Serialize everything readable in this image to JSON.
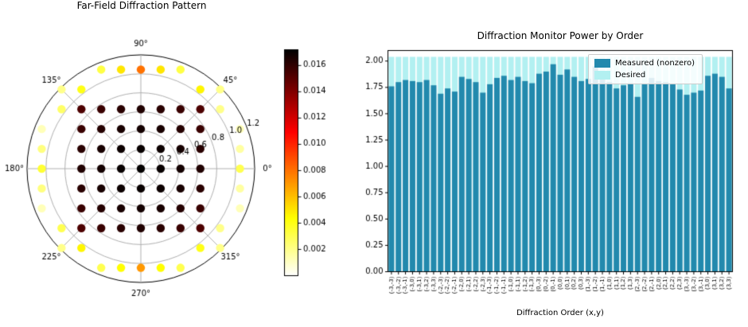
{
  "chart_data": [
    {
      "id": "far_field_polar",
      "type": "scatter",
      "projection": "polar",
      "title": "Far-Field Diffraction Pattern",
      "angle_tick_labels": [
        "0°",
        "45°",
        "90°",
        "135°",
        "180°",
        "225°",
        "270°",
        "315°"
      ],
      "angle_ticks_deg": [
        0,
        45,
        90,
        135,
        180,
        225,
        270,
        315
      ],
      "r_tick_labels": [
        "0.2",
        "0.4",
        "0.6",
        "0.8",
        "1.0",
        "1.2"
      ],
      "r_ticks": [
        0.2,
        0.4,
        0.6,
        0.8,
        1.0,
        1.2
      ],
      "r_max": 1.2,
      "r_label_angle_deg": 22.5,
      "colormap": "hot_r",
      "vmin": 0.0,
      "vmax": 0.0172,
      "colorbar_ticks": [
        0.002,
        0.004,
        0.006,
        0.008,
        0.01,
        0.012,
        0.014,
        0.016
      ],
      "order_spacing": 0.209,
      "inner_grid": {
        "m_range": [
          -3,
          3
        ],
        "n_range": [
          -3,
          3
        ],
        "values_rows": [
          [
            0.0153,
            0.0158,
            0.0162,
            0.0164,
            0.0162,
            0.0158,
            0.0153
          ],
          [
            0.0158,
            0.0163,
            0.0166,
            0.0167,
            0.0166,
            0.0163,
            0.0158
          ],
          [
            0.0162,
            0.0166,
            0.0169,
            0.017,
            0.0169,
            0.0166,
            0.0162
          ],
          [
            0.0164,
            0.0167,
            0.017,
            0.0171,
            0.017,
            0.0167,
            0.0164
          ],
          [
            0.0162,
            0.0166,
            0.0169,
            0.017,
            0.0169,
            0.0166,
            0.0162
          ],
          [
            0.0158,
            0.0163,
            0.0166,
            0.0167,
            0.0166,
            0.0163,
            0.0158
          ],
          [
            0.0153,
            0.0158,
            0.0162,
            0.0164,
            0.0162,
            0.0158,
            0.0153
          ]
        ]
      },
      "outer_points": [
        [
          5,
          0,
          0.003
        ],
        [
          -5,
          0,
          0.0035
        ],
        [
          0,
          5,
          0.008
        ],
        [
          0,
          -5,
          0.007
        ],
        [
          4,
          3,
          0.002
        ],
        [
          3,
          4,
          0.0046
        ],
        [
          -3,
          4,
          0.004
        ],
        [
          -4,
          3,
          0.0026
        ],
        [
          -4,
          -3,
          0.003
        ],
        [
          -3,
          -4,
          0.0046
        ],
        [
          3,
          -4,
          0.004
        ],
        [
          4,
          -3,
          0.002
        ],
        [
          5,
          1,
          0.0016
        ],
        [
          5,
          -1,
          0.0016
        ],
        [
          -5,
          1,
          0.0022
        ],
        [
          -5,
          -1,
          0.0022
        ],
        [
          1,
          5,
          0.005
        ],
        [
          -1,
          5,
          0.005
        ],
        [
          1,
          -5,
          0.0044
        ],
        [
          -1,
          -5,
          0.0044
        ],
        [
          5,
          2,
          0.0012
        ],
        [
          -5,
          2,
          0.0012
        ],
        [
          5,
          -2,
          0.0012
        ],
        [
          -5,
          -2,
          0.0012
        ],
        [
          2,
          5,
          0.0032
        ],
        [
          -2,
          5,
          0.0032
        ],
        [
          2,
          -5,
          0.003
        ],
        [
          -2,
          -5,
          0.003
        ],
        [
          4,
          4,
          0.002
        ],
        [
          -4,
          4,
          0.002
        ],
        [
          4,
          -4,
          0.002
        ],
        [
          -4,
          -4,
          0.002
        ]
      ]
    },
    {
      "id": "power_by_order",
      "type": "bar",
      "title": "Diffraction Monitor Power by Order",
      "xlabel": "Diffraction Order (x,y)",
      "ylim": [
        0,
        2.1
      ],
      "y_ticks": [
        0,
        0.25,
        0.5,
        0.75,
        1.0,
        1.25,
        1.5,
        1.75,
        2.0
      ],
      "grid": false,
      "legend_position": "upper right",
      "categories": [
        "(-3,-3)",
        "(-3,-2)",
        "(-3,-1)",
        "(-3,0)",
        "(-3,1)",
        "(-3,2)",
        "(-3,3)",
        "(-2,-3)",
        "(-2,-2)",
        "(-2,-1)",
        "(-2,0)",
        "(-2,1)",
        "(-2,2)",
        "(-2,3)",
        "(-1,-3)",
        "(-1,-2)",
        "(-1,-1)",
        "(-1,0)",
        "(-1,1)",
        "(-1,2)",
        "(-1,3)",
        "(0,-3)",
        "(0,-2)",
        "(0,-1)",
        "(0,0)",
        "(0,1)",
        "(0,2)",
        "(0,3)",
        "(1,-3)",
        "(1,-2)",
        "(1,-1)",
        "(1,0)",
        "(1,1)",
        "(1,2)",
        "(1,3)",
        "(2,-3)",
        "(2,-2)",
        "(2,-1)",
        "(2,0)",
        "(2,1)",
        "(2,2)",
        "(2,3)",
        "(3,-3)",
        "(3,-2)",
        "(3,-1)",
        "(3,0)",
        "(3,1)",
        "(3,2)",
        "(3,3)"
      ],
      "series": [
        {
          "name": "Measured (nonzero)",
          "color": "#2289ad",
          "values": [
            1.76,
            1.8,
            1.82,
            1.81,
            1.8,
            1.82,
            1.77,
            1.69,
            1.74,
            1.71,
            1.85,
            1.83,
            1.8,
            1.7,
            1.78,
            1.84,
            1.86,
            1.82,
            1.85,
            1.81,
            1.79,
            1.88,
            1.9,
            1.97,
            1.87,
            1.92,
            1.85,
            1.81,
            1.83,
            1.95,
            1.86,
            1.8,
            1.74,
            1.77,
            1.79,
            1.66,
            1.78,
            1.84,
            1.81,
            1.8,
            1.78,
            1.73,
            1.68,
            1.7,
            1.72,
            1.86,
            1.88,
            1.85,
            1.74
          ]
        },
        {
          "name": "Desired",
          "color": "#b2f0f1",
          "uniform_value": 2.04
        }
      ]
    }
  ]
}
